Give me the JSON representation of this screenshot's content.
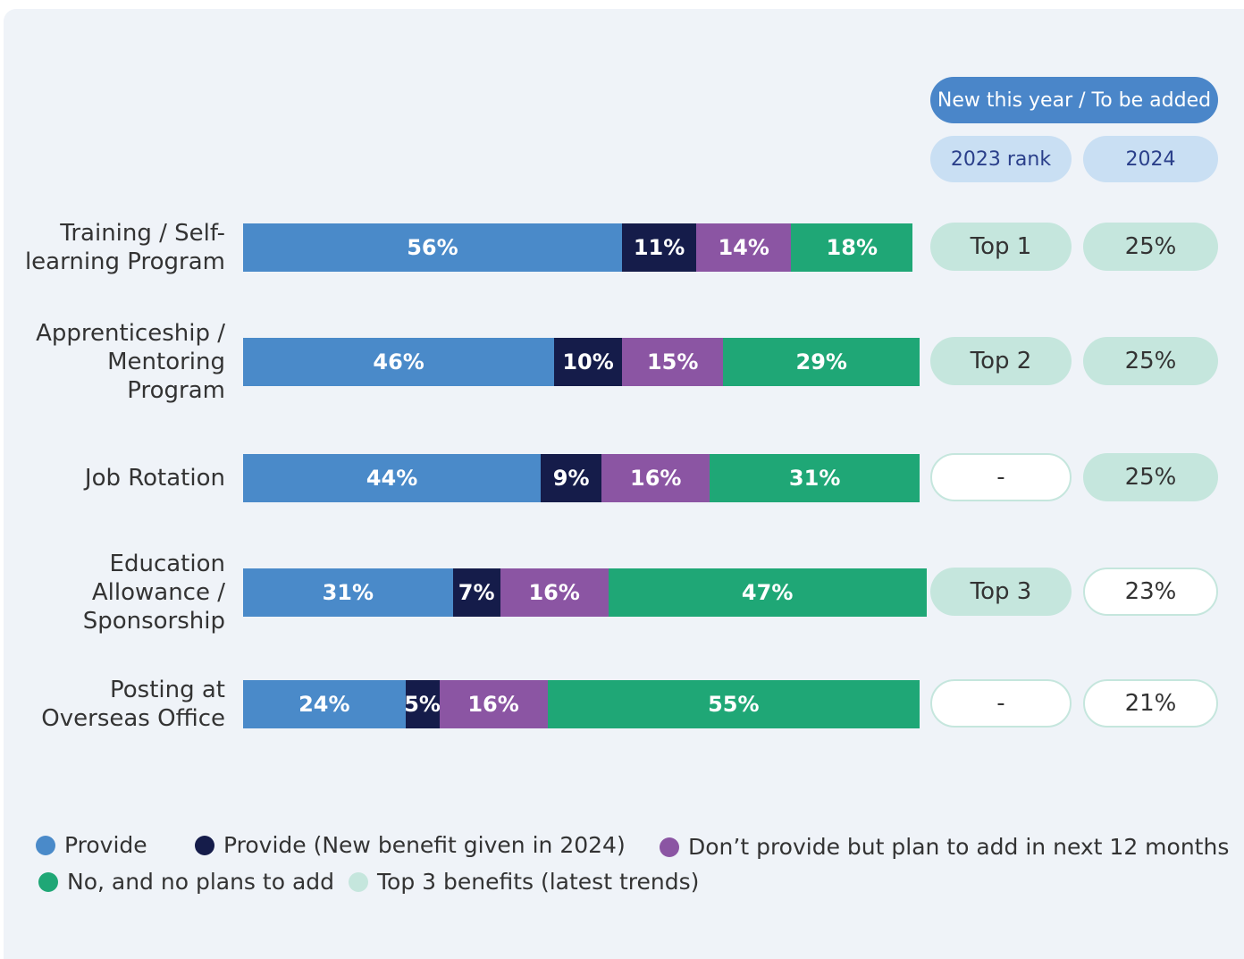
{
  "chart_data": {
    "type": "stacked-bar-horizontal",
    "categories": [
      "Training / Self-learning Program",
      "Apprenticeship / Mentoring Program",
      "Job Rotation",
      "Education Allowance / Sponsorship",
      "Posting at Overseas Office"
    ],
    "xlim": [
      0,
      100
    ],
    "series": [
      {
        "name": "Provide",
        "color": "#4a8ac9",
        "values": [
          56,
          46,
          44,
          31,
          24
        ],
        "value_labels": [
          "56%",
          "46%",
          "44%",
          "31%",
          "24%"
        ]
      },
      {
        "name": "Provide (New benefit given in 2024)",
        "color": "#151c4a",
        "values": [
          11,
          10,
          9,
          7,
          5
        ],
        "value_labels": [
          "11%",
          "10%",
          "9%",
          "7%",
          "5%"
        ]
      },
      {
        "name": "Don’t provide but plan to add in next 12 months",
        "color": "#8b55a3",
        "values": [
          14,
          15,
          16,
          16,
          16
        ],
        "value_labels": [
          "14%",
          "15%",
          "16%",
          "16%",
          "16%"
        ]
      },
      {
        "name": "No, and no plans to add",
        "color": "#1fa776",
        "values": [
          18,
          29,
          31,
          47,
          55
        ],
        "value_labels": [
          "18%",
          "29%",
          "31%",
          "47%",
          "55%"
        ]
      }
    ]
  },
  "table": {
    "header": "New this year / To be added",
    "columns": [
      "2023 rank",
      "2024"
    ],
    "rows": [
      [
        "Top 1",
        "25%"
      ],
      [
        "Top 2",
        "25%"
      ],
      [
        "-",
        "25%"
      ],
      [
        "Top 3",
        "23%"
      ],
      [
        "-",
        "21%"
      ]
    ],
    "top3": [
      [
        true,
        true
      ],
      [
        true,
        true
      ],
      [
        false,
        true
      ],
      [
        true,
        false
      ],
      [
        false,
        false
      ]
    ],
    "legend": {
      "name": "Top 3 benefits (latest trends)",
      "color": "#c5e6dd"
    }
  }
}
